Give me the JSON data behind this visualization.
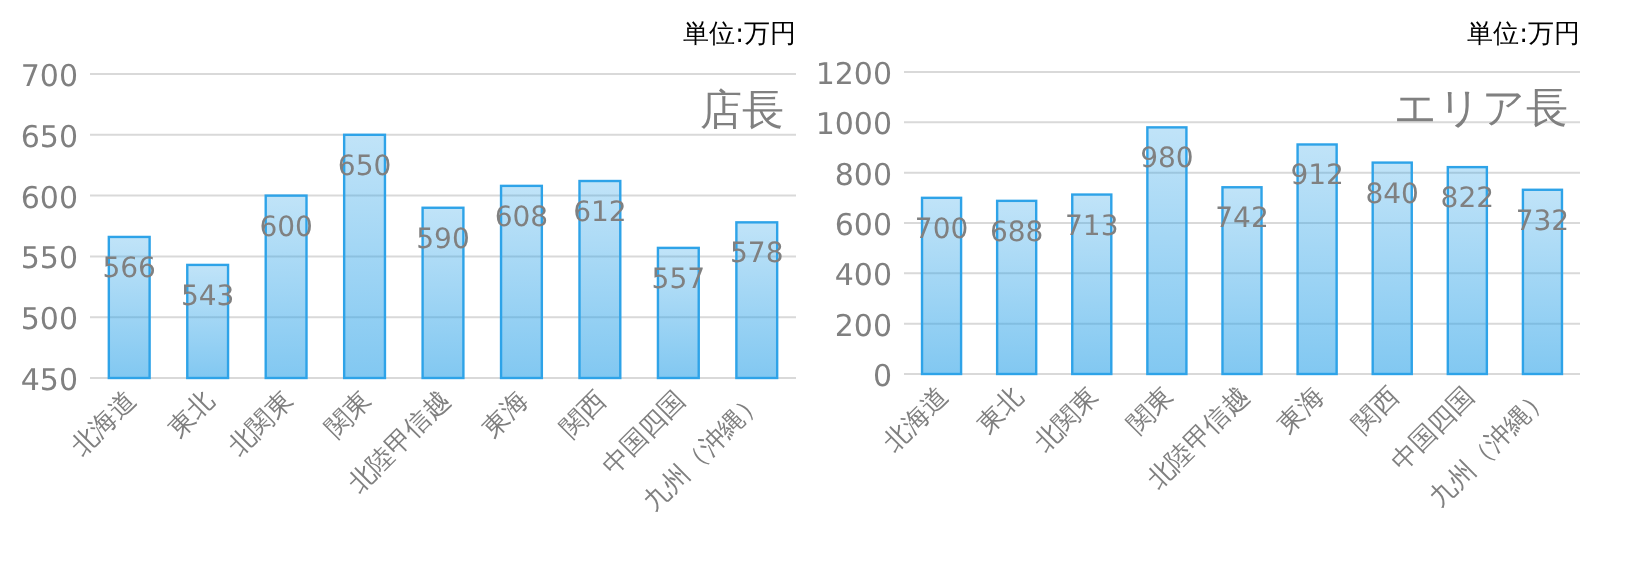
{
  "chart_data": [
    {
      "type": "bar",
      "title": "店長",
      "annotations": [
        "単位:万円"
      ],
      "categories": [
        "北海道",
        "東北",
        "北関東",
        "関東",
        "北陸甲信越",
        "東海",
        "関西",
        "中国四国",
        "九州（沖縄）"
      ],
      "values": [
        566,
        543,
        600,
        650,
        590,
        608,
        612,
        557,
        578
      ],
      "color": "#2ea3e8",
      "ylim": [
        450,
        700
      ],
      "yticks": [
        450,
        500,
        550,
        600,
        650,
        700
      ],
      "grid": "y",
      "data_labels": true
    },
    {
      "type": "bar",
      "title": "エリア長",
      "annotations": [
        "単位:万円"
      ],
      "categories": [
        "北海道",
        "東北",
        "北関東",
        "関東",
        "北陸甲信越",
        "東海",
        "関西",
        "中国四国",
        "九州（沖縄）"
      ],
      "values": [
        700,
        688,
        713,
        980,
        742,
        912,
        840,
        822,
        732
      ],
      "color": "#2ea3e8",
      "ylim": [
        0,
        1200
      ],
      "yticks": [
        0,
        200,
        400,
        600,
        800,
        1000,
        1200
      ],
      "grid": "y",
      "data_labels": true
    }
  ]
}
